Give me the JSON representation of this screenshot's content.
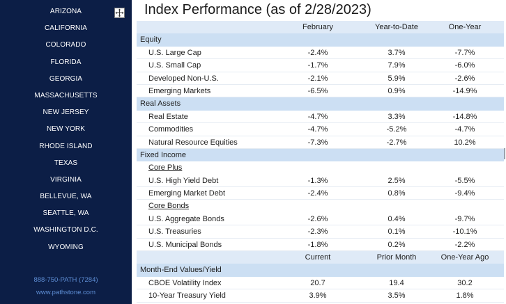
{
  "sidebar": {
    "states": [
      "ARIZONA",
      "CALIFORNIA",
      "COLORADO",
      "FLORIDA",
      "GEORGIA",
      "MASSACHUSETTS",
      "NEW JERSEY",
      "NEW YORK",
      "RHODE ISLAND",
      "TEXAS",
      "VIRGINIA",
      "BELLEVUE, WA",
      "SEATTLE, WA",
      "WASHINGTON D.C.",
      "WYOMING"
    ],
    "phone": "888-750-PATH (7284)",
    "website": "www.pathstone.com"
  },
  "title": "Index Performance (as of 2/28/2023)",
  "table": {
    "headers": [
      "February",
      "Year-to-Date",
      "One-Year"
    ],
    "equity": {
      "label": "Equity",
      "rows": [
        {
          "name": "U.S. Large Cap",
          "feb": "-2.4%",
          "ytd": "3.7%",
          "one_year": "-7.7%"
        },
        {
          "name": "U.S. Small Cap",
          "feb": "-1.7%",
          "ytd": "7.9%",
          "one_year": "-6.0%"
        },
        {
          "name": "Developed Non-U.S.",
          "feb": "-2.1%",
          "ytd": "5.9%",
          "one_year": "-2.6%"
        },
        {
          "name": "Emerging Markets",
          "feb": "-6.5%",
          "ytd": "0.9%",
          "one_year": "-14.9%"
        }
      ]
    },
    "real_assets": {
      "label": "Real Assets",
      "rows": [
        {
          "name": "Real Estate",
          "feb": "-4.7%",
          "ytd": "3.3%",
          "one_year": "-14.8%"
        },
        {
          "name": "Commodities",
          "feb": "-4.7%",
          "ytd": "-5.2%",
          "one_year": "-4.7%"
        },
        {
          "name": "Natural Resource Equities",
          "feb": "-7.3%",
          "ytd": "-2.7%",
          "one_year": "10.2%"
        }
      ]
    },
    "fixed_income": {
      "label": "Fixed Income",
      "core_plus_label": "Core Plus",
      "core_plus": [
        {
          "name": "U.S. High Yield Debt",
          "feb": "-1.3%",
          "ytd": "2.5%",
          "one_year": "-5.5%"
        },
        {
          "name": "Emerging Market Debt",
          "feb": "-2.4%",
          "ytd": "0.8%",
          "one_year": "-9.4%"
        }
      ],
      "core_bonds_label": "Core Bonds",
      "core_bonds": [
        {
          "name": "U.S. Aggregate Bonds",
          "feb": "-2.6%",
          "ytd": "0.4%",
          "one_year": "-9.7%"
        },
        {
          "name": "U.S. Treasuries",
          "feb": "-2.3%",
          "ytd": "0.1%",
          "one_year": "-10.1%"
        },
        {
          "name": "U.S. Municipal Bonds",
          "feb": "-1.8%",
          "ytd": "0.2%",
          "one_year": "-2.2%"
        }
      ]
    },
    "month_end": {
      "headers": [
        "Current",
        "Prior Month",
        "One-Year Ago"
      ],
      "label": "Month-End Values/Yield",
      "rows": [
        {
          "name": "CBOE Volatility Index",
          "current": "20.7",
          "prior": "19.4",
          "year_ago": "30.2"
        },
        {
          "name": "10-Year Treasury Yield",
          "current": "3.9%",
          "prior": "3.5%",
          "year_ago": "1.8%"
        }
      ]
    }
  },
  "icons": {
    "move_handle": "move-arrows-icon"
  },
  "colors": {
    "sidebar_bg": "#0c1e46",
    "header_bg": "#dfeaf7",
    "section_bg": "#ccdff3",
    "link": "#5f8fd6"
  }
}
